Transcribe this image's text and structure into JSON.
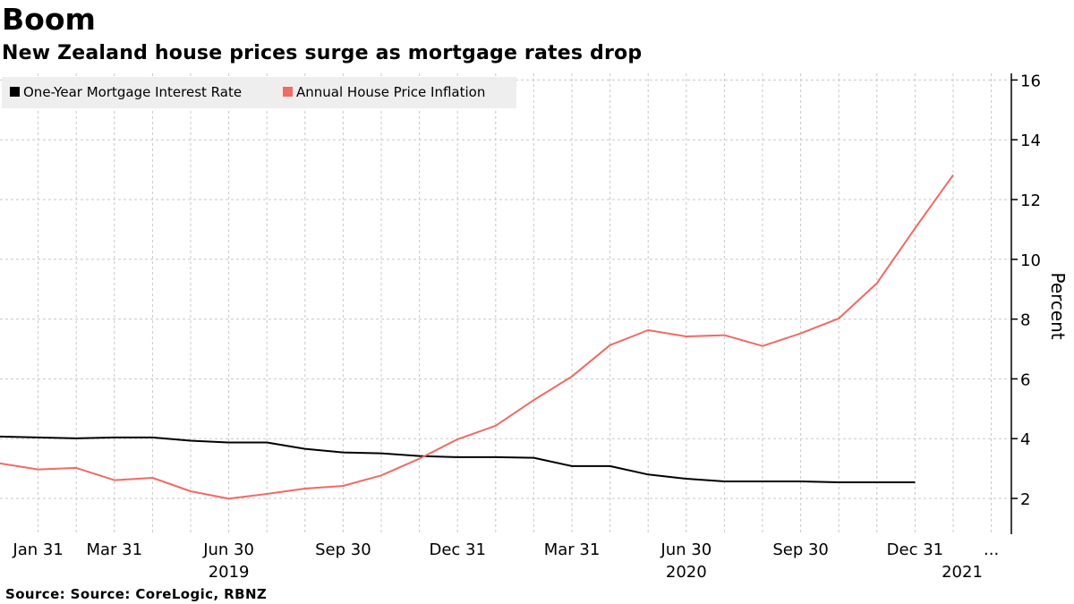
{
  "header": {
    "title": "Boom",
    "subtitle": "New Zealand house prices surge as mortgage rates drop"
  },
  "footer": {
    "source": "Source: Source: CoreLogic, RBNZ"
  },
  "colors": {
    "mortgage": "#000000",
    "house": "#ef6b64",
    "grid": "#c8c8c8",
    "legend_bg": "#eeeeee"
  },
  "chart_data": {
    "type": "line",
    "title": "Boom",
    "subtitle": "New Zealand house prices surge as mortgage rates drop",
    "ylabel": "Percent",
    "ylim": [
      1,
      16.5
    ],
    "yticks": [
      2,
      4,
      6,
      8,
      10,
      12,
      14,
      16
    ],
    "x_month_range": [
      0,
      25.5
    ],
    "x_ticks": [
      {
        "label": "Jan 31",
        "month": 1
      },
      {
        "label": "Mar 31",
        "month": 3
      },
      {
        "label": "Jun 30",
        "month": 6
      },
      {
        "label": "Sep 30",
        "month": 9
      },
      {
        "label": "Dec 31",
        "month": 12
      },
      {
        "label": "Mar 31",
        "month": 15
      },
      {
        "label": "Jun 30",
        "month": 18
      },
      {
        "label": "Sep 30",
        "month": 21
      },
      {
        "label": "Dec 31",
        "month": 24
      }
    ],
    "x_ellipsis": {
      "label": "...",
      "month": 26
    },
    "year_labels": [
      {
        "label": "2019",
        "month": 6
      },
      {
        "label": "2020",
        "month": 18
      },
      {
        "label": "2021",
        "month": 25
      }
    ],
    "legend": [
      "One-Year Mortgage Interest Rate",
      "Annual House Price Inflation"
    ],
    "series": [
      {
        "name": "One-Year Mortgage Interest Rate",
        "color": "#000000",
        "months": [
          0,
          1,
          2,
          3,
          4,
          5,
          6,
          7,
          8,
          9,
          10,
          11,
          12,
          13,
          14,
          15,
          16,
          17,
          18,
          19,
          20,
          21,
          22,
          23,
          24
        ],
        "values": [
          4.07,
          4.04,
          4.01,
          4.04,
          4.04,
          3.93,
          3.87,
          3.87,
          3.66,
          3.54,
          3.51,
          3.42,
          3.38,
          3.38,
          3.36,
          3.08,
          3.08,
          2.8,
          2.66,
          2.57,
          2.57,
          2.57,
          2.54,
          2.54,
          2.54
        ]
      },
      {
        "name": "Annual House Price Inflation",
        "color": "#ef6b64",
        "months": [
          0,
          1,
          2,
          3,
          4,
          5,
          6,
          7,
          8,
          9,
          10,
          11,
          12,
          13,
          14,
          15,
          16,
          17,
          18,
          19,
          20,
          21,
          22,
          23,
          24,
          25
        ],
        "values": [
          3.17,
          2.97,
          3.02,
          2.61,
          2.69,
          2.24,
          1.99,
          2.15,
          2.33,
          2.42,
          2.77,
          3.33,
          3.98,
          4.43,
          5.29,
          6.08,
          7.13,
          7.63,
          7.42,
          7.46,
          7.1,
          7.52,
          8.02,
          9.2,
          11.04,
          12.82
        ]
      }
    ]
  }
}
